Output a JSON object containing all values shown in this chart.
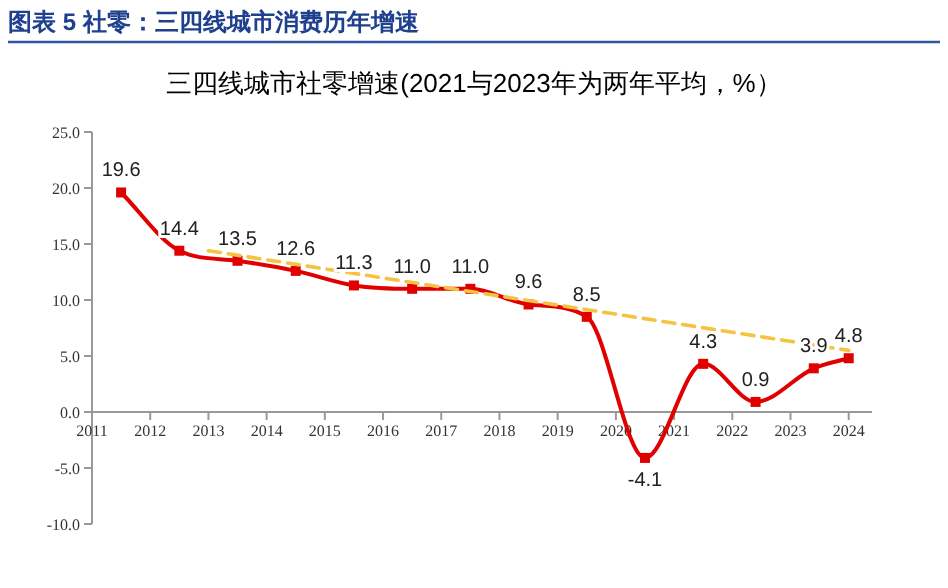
{
  "chart_data": {
    "type": "line",
    "title": "图表 5 社零：三四线城市消费历年增速",
    "subtitle": "三四线城市社零增速(2021与2023年为两年平均，%）",
    "x": [
      2011.5,
      2012.5,
      2013.5,
      2014.5,
      2015.5,
      2016.5,
      2017.5,
      2018.5,
      2019.5,
      2020.5,
      2021.5,
      2022.4,
      2023.4,
      2024.0
    ],
    "series": [
      {
        "color": "#e00000",
        "values": [
          19.6,
          14.4,
          13.5,
          12.6,
          11.3,
          11.0,
          11.0,
          9.6,
          8.5,
          -4.1,
          4.3,
          0.9,
          3.9,
          4.8
        ],
        "marker": "square",
        "value_labels": [
          "19.6",
          "14.4",
          "13.5",
          "12.6",
          "11.3",
          "11.0",
          "11.0",
          "9.6",
          "8.5",
          "-4.1",
          "4.3",
          "0.9",
          "3.9",
          "4.8"
        ]
      },
      {
        "color": "#f5c242",
        "x": [
          2013.0,
          2024.0
        ],
        "values": [
          14.4,
          5.5
        ],
        "line_style": "dashed",
        "marker": "none"
      }
    ],
    "xlim": [
      2011,
      2024.4
    ],
    "xticks": [
      2011,
      2012,
      2013,
      2014,
      2015,
      2016,
      2017,
      2018,
      2019,
      2020,
      2021,
      2022,
      2023,
      2024
    ],
    "ylim": [
      -10,
      25
    ],
    "yticks": [
      {
        "value": -10,
        "label": "-10.0"
      },
      {
        "value": -5,
        "label": "-5.0"
      },
      {
        "value": 0,
        "label": "0.0"
      },
      {
        "value": 5,
        "label": "5.0"
      },
      {
        "value": 10,
        "label": "10.0"
      },
      {
        "value": 15,
        "label": "15.0"
      },
      {
        "value": 20,
        "label": "20.0"
      },
      {
        "value": 25,
        "label": "25.0"
      }
    ],
    "grid": false
  }
}
